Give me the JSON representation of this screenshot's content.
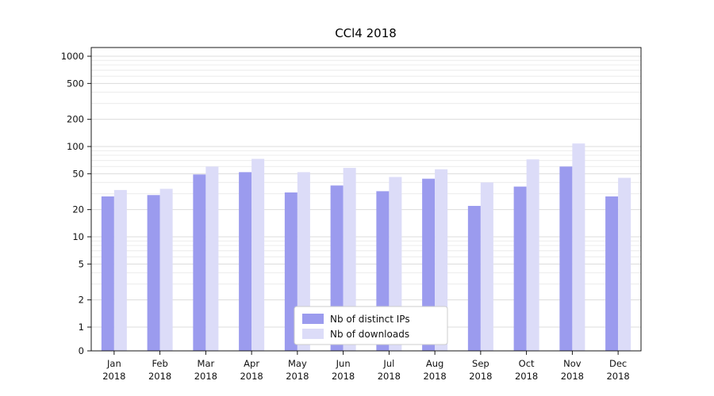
{
  "chart_data": {
    "type": "bar",
    "title": "CCl4 2018",
    "categories": [
      "Jan",
      "Feb",
      "Mar",
      "Apr",
      "May",
      "Jun",
      "Jul",
      "Aug",
      "Sep",
      "Oct",
      "Nov",
      "Dec"
    ],
    "year": "2018",
    "series": [
      {
        "name": "Nb of distinct IPs",
        "color": "#9b9bee",
        "values": [
          28,
          29,
          49,
          52,
          31,
          37,
          32,
          44,
          22,
          36,
          60,
          28
        ]
      },
      {
        "name": "Nb of downloads",
        "color": "#dcdcf8",
        "values": [
          33,
          34,
          60,
          73,
          52,
          58,
          46,
          56,
          40,
          72,
          108,
          45
        ]
      }
    ],
    "yscale": "symlog",
    "yticks": [
      0,
      1,
      2,
      5,
      10,
      20,
      50,
      100,
      200,
      500,
      1000
    ],
    "ylim": [
      0,
      1200
    ],
    "grid": true,
    "legend_position": "lower center",
    "colors": {
      "background": "#ffffff",
      "axis": "#000000",
      "grid_major": "#dcdcdc",
      "grid_minor": "#ececec",
      "legend_border": "#cccccc"
    }
  }
}
